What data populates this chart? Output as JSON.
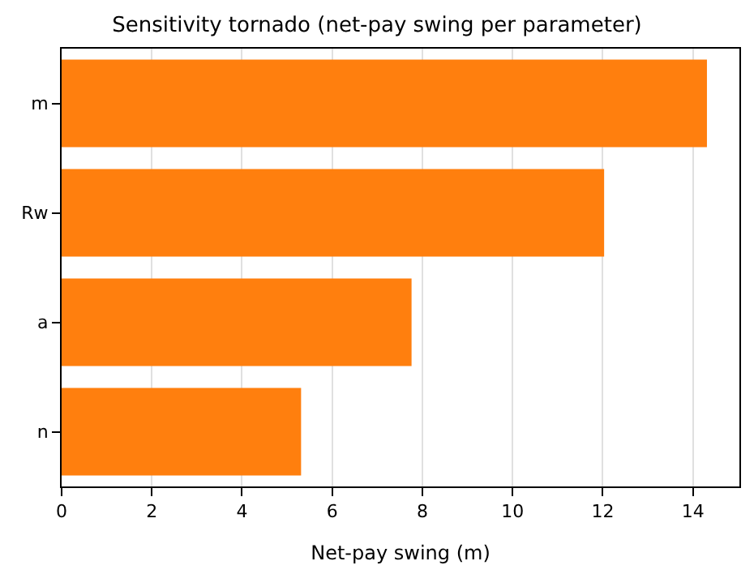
{
  "chart_data": {
    "type": "bar",
    "orientation": "horizontal",
    "title": "Sensitivity tornado (net-pay swing per parameter)",
    "xlabel": "Net-pay swing (m)",
    "categories": [
      "m",
      "Rw",
      "a",
      "n"
    ],
    "values": [
      14.31,
      12.03,
      7.76,
      5.31
    ],
    "color": "#ff7f0e",
    "xlim": [
      0,
      15.03
    ],
    "xticks": [
      0,
      2,
      4,
      6,
      8,
      10,
      12,
      14
    ],
    "grid": "x"
  }
}
